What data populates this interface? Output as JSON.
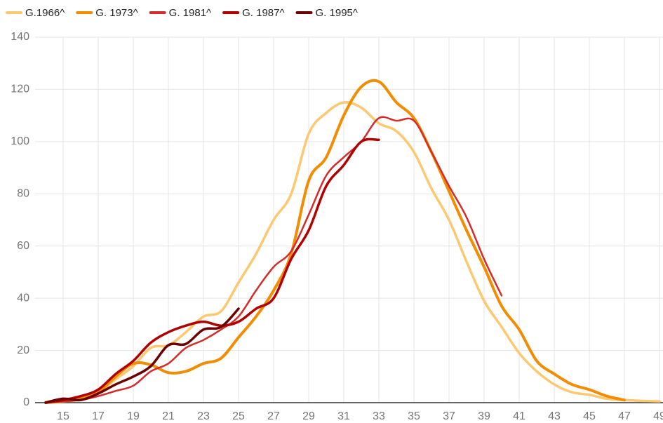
{
  "chart_data": {
    "type": "line",
    "x": [
      14,
      15,
      16,
      17,
      18,
      19,
      20,
      21,
      22,
      23,
      24,
      25,
      26,
      27,
      28,
      29,
      30,
      31,
      32,
      33,
      34,
      35,
      36,
      37,
      38,
      39,
      40,
      41,
      42,
      43,
      44,
      45,
      46,
      47,
      48,
      49
    ],
    "series": [
      {
        "name": "G.1966^",
        "color": "#fdc870",
        "values": [
          0.3,
          1,
          2,
          4,
          9,
          14,
          21,
          22,
          27,
          33,
          35,
          46,
          57,
          70,
          80,
          103,
          111,
          115,
          113,
          107,
          104,
          96,
          82,
          70,
          54,
          39,
          29,
          19,
          12,
          7,
          4,
          3,
          1.5,
          1,
          0.7,
          0.5
        ]
      },
      {
        "name": "G. 1973^",
        "color": "#f28c00",
        "values": [
          0,
          0.5,
          1.5,
          4,
          10,
          15,
          14.5,
          11.5,
          12,
          15,
          17,
          25,
          33,
          43,
          57,
          85,
          94,
          110,
          121,
          123,
          115,
          109,
          96,
          81,
          66,
          52,
          37,
          28,
          16,
          11,
          7,
          5,
          2.5,
          1,
          null,
          null
        ]
      },
      {
        "name": "G. 1981^",
        "color": "#d42b2b",
        "values": [
          0,
          0.5,
          1,
          2.5,
          4.5,
          6.5,
          12,
          15,
          21,
          24,
          28,
          33,
          43,
          52,
          58,
          72,
          87,
          94,
          100,
          109,
          108,
          108,
          96,
          83,
          71,
          55,
          41,
          null,
          null,
          null,
          null,
          null,
          null,
          null,
          null,
          null
        ]
      },
      {
        "name": "G. 1987^",
        "color": "#b00000",
        "values": [
          0,
          1,
          2.5,
          5,
          11,
          16,
          23,
          27,
          29.5,
          31,
          29.5,
          31,
          36,
          40,
          55,
          66,
          83,
          91,
          100,
          100.7,
          null,
          null,
          null,
          null,
          null,
          null,
          null,
          null,
          null,
          null,
          null,
          null,
          null,
          null,
          null,
          null
        ]
      },
      {
        "name": "G. 1995^",
        "color": "#6b0000",
        "values": [
          0,
          1.5,
          1,
          3.5,
          7,
          10,
          14,
          22,
          22.5,
          28,
          29,
          36,
          null,
          null,
          null,
          null,
          null,
          null,
          null,
          null,
          null,
          null,
          null,
          null,
          null,
          null,
          null,
          null,
          null,
          null,
          null,
          null,
          null,
          null,
          null,
          null
        ]
      }
    ],
    "xlim": [
      13.4,
      49.2
    ],
    "xticks": [
      15,
      17,
      19,
      21,
      23,
      25,
      27,
      29,
      31,
      33,
      35,
      37,
      39,
      41,
      43,
      45,
      47,
      49
    ],
    "ylim": [
      0,
      140
    ],
    "yticks": [
      0,
      20,
      40,
      60,
      80,
      100,
      120,
      140
    ],
    "grid": true,
    "legend": "top"
  }
}
